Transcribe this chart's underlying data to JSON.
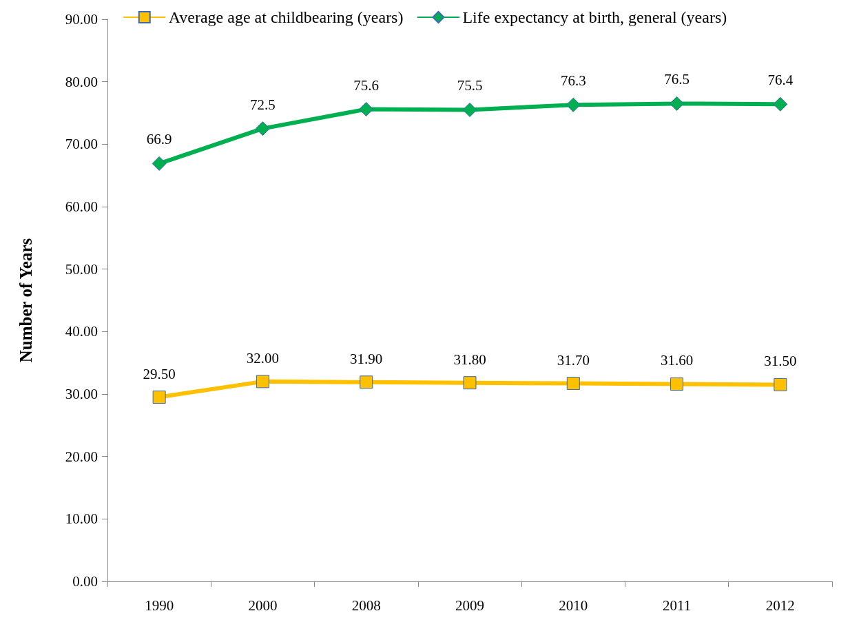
{
  "chart_data": {
    "type": "line",
    "ylabel": "Number of Years",
    "categories": [
      "1990",
      "2000",
      "2008",
      "2009",
      "2010",
      "2011",
      "2012"
    ],
    "series": [
      {
        "name": "Average age at childbearing (years)",
        "color": "#ffc000",
        "marker": "square",
        "values": [
          29.5,
          32.0,
          31.9,
          31.8,
          31.7,
          31.6,
          31.5
        ],
        "value_labels": [
          "29.50",
          "32.00",
          "31.90",
          "31.80",
          "31.70",
          "31.60",
          "31.50"
        ]
      },
      {
        "name": "Life expectancy at birth, general (years)",
        "color": "#00b050",
        "marker": "diamond",
        "values": [
          66.9,
          72.5,
          75.6,
          75.5,
          76.3,
          76.5,
          76.4
        ],
        "value_labels": [
          "66.9",
          "72.5",
          "75.6",
          "75.5",
          "76.3",
          "76.5",
          "76.4"
        ]
      }
    ],
    "ylim": [
      0,
      90
    ],
    "yticks": [
      {
        "value": 0,
        "label": "0.00"
      },
      {
        "value": 10,
        "label": "10.00"
      },
      {
        "value": 20,
        "label": "20.00"
      },
      {
        "value": 30,
        "label": "30.00"
      },
      {
        "value": 40,
        "label": "40.00"
      },
      {
        "value": 50,
        "label": "50.00"
      },
      {
        "value": 60,
        "label": "60.00"
      },
      {
        "value": 70,
        "label": "70.00"
      },
      {
        "value": 80,
        "label": "80.00"
      },
      {
        "value": 90,
        "label": "90.00"
      }
    ],
    "grid": false,
    "legend": "top",
    "line_style": "solid"
  }
}
